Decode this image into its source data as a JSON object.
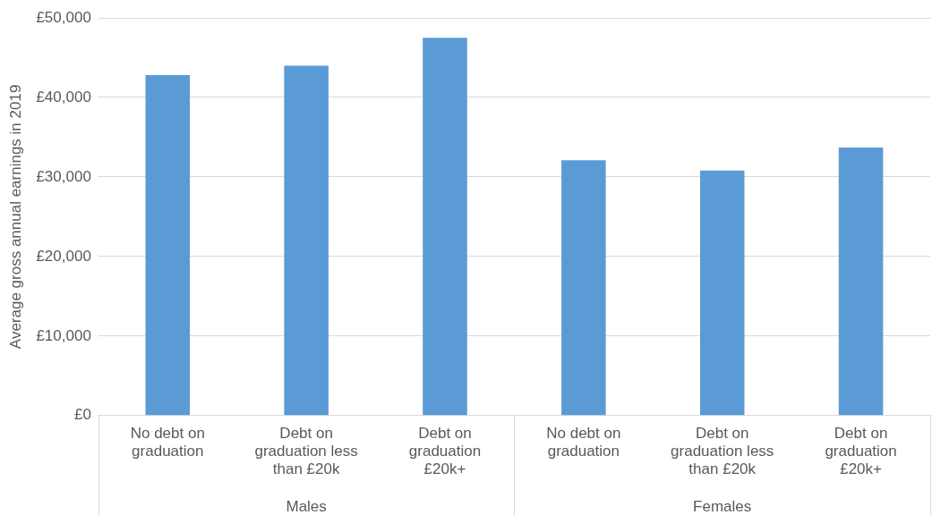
{
  "chart_data": {
    "type": "bar",
    "ylabel": "Average gross annual earnings in 2019",
    "categories": [
      "No debt on graduation",
      "Debt on graduation less than £20k",
      "Debt on graduation £20k+",
      "No debt on graduation",
      "Debt on graduation less than £20k",
      "Debt on graduation £20k+"
    ],
    "values": [
      42800,
      44000,
      47500,
      32100,
      30800,
      33700
    ],
    "color": "#5b9bd5",
    "ylim": [
      0,
      50000
    ],
    "yticks": [
      {
        "value": 0,
        "label": "£0"
      },
      {
        "value": 10000,
        "label": "£10,000"
      },
      {
        "value": 20000,
        "label": "£20,000"
      },
      {
        "value": 30000,
        "label": "£30,000"
      },
      {
        "value": 40000,
        "label": "£40,000"
      },
      {
        "value": 50000,
        "label": "£50,000"
      }
    ],
    "grid": "y",
    "legend": false,
    "annotations": [
      "Males",
      "Females"
    ]
  }
}
